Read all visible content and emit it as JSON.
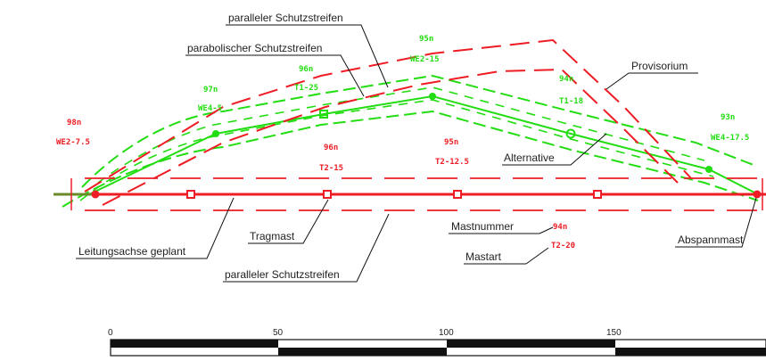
{
  "colors": {
    "red": "#ee1c24",
    "green": "#22dd11",
    "black": "#111111"
  },
  "labels": {
    "parallel_top": "paralleler Schutzstreifen",
    "parabolic": "parabolischer Schutzstreifen",
    "provisorium": "Provisorium",
    "alternative": "Alternative",
    "axis_planned": "Leitungsachse geplant",
    "tragmast": "Tragmast",
    "parallel_bottom": "paralleler Schutzstreifen",
    "mastnummer": "Mastnummer",
    "mastart": "Mastart",
    "abspannmast": "Abspannmast"
  },
  "mast_tags": {
    "red_left_number": "98n",
    "red_left_type": "WE2-7.5",
    "red_m1_number": "96n",
    "red_m1_type": "T2-15",
    "red_m2_number": "95n",
    "red_m2_type": "T2-12.5",
    "legend_number": "94n",
    "legend_type": "T2-20",
    "green_a_number": "97n",
    "green_a_type": "WE4-5",
    "green_b_number": "96n",
    "green_b_type": "T1-25",
    "green_c_number": "95n",
    "green_c_type": "WE2-15",
    "green_d_number": "94n",
    "green_d_type": "T1-18",
    "green_e_number": "93n",
    "green_e_type": "WE4-17.5"
  },
  "scale_bar": {
    "ticks": [
      "0",
      "50",
      "100",
      "150"
    ]
  }
}
